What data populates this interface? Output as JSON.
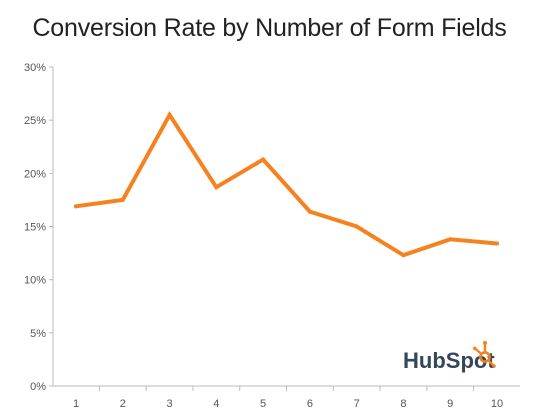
{
  "chart_data": {
    "type": "line",
    "title": "Conversion Rate by Number of Form Fields",
    "xlabel": "",
    "ylabel": "",
    "x": [
      1,
      2,
      3,
      4,
      5,
      6,
      7,
      8,
      9,
      10
    ],
    "series": [
      {
        "values": [
          16.9,
          17.5,
          25.5,
          18.7,
          21.3,
          16.4,
          15.0,
          12.3,
          13.8,
          13.4
        ]
      }
    ],
    "ylim": [
      0,
      30
    ],
    "yticks": [
      0,
      5,
      10,
      15,
      20,
      25,
      30
    ],
    "ytick_labels": [
      "0%",
      "5%",
      "10%",
      "15%",
      "20%",
      "25%",
      "30%"
    ],
    "xtick_labels": [
      "1",
      "2",
      "3",
      "4",
      "5",
      "6",
      "7",
      "8",
      "9",
      "10"
    ],
    "grid": false,
    "legend": "none",
    "line_color": "#f5821f",
    "axis_color": "#bbbbbb"
  },
  "logo": {
    "text": "HubSpot",
    "name": "hubspot-logo",
    "primary_color": "#33475b",
    "accent_color": "#f5821f"
  }
}
